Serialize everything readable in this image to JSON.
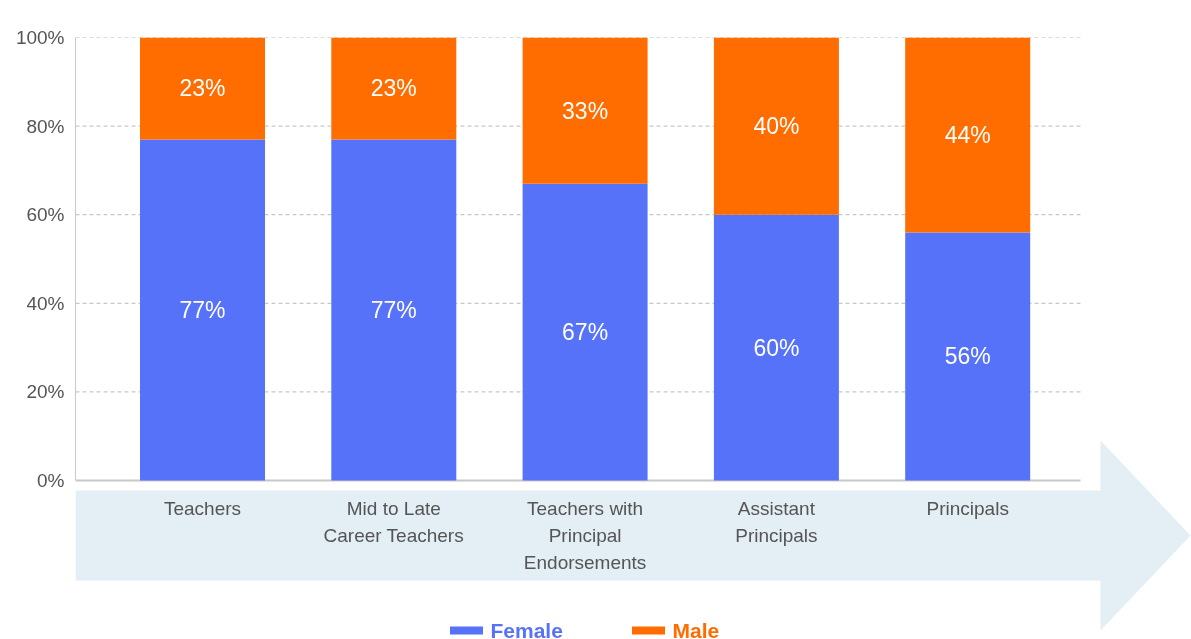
{
  "chart_data": {
    "type": "bar",
    "stacked": true,
    "categories": [
      "Teachers",
      "Mid to Late Career Teachers",
      "Teachers with Principal Endorsements",
      "Assistant Principals",
      "Principals"
    ],
    "series": [
      {
        "name": "Female",
        "color": "#5672f8",
        "values": [
          77,
          77,
          67,
          60,
          56
        ],
        "value_labels": [
          "77%",
          "77%",
          "67%",
          "60%",
          "56%"
        ]
      },
      {
        "name": "Male",
        "color": "#ff6d00",
        "values": [
          23,
          23,
          33,
          40,
          44
        ],
        "value_labels": [
          "23%",
          "23%",
          "33%",
          "40%",
          "44%"
        ]
      }
    ],
    "ylim": [
      0,
      100
    ],
    "yticks": [
      {
        "value": 0,
        "label": "0%"
      },
      {
        "value": 20,
        "label": "20%"
      },
      {
        "value": 40,
        "label": "40%"
      },
      {
        "value": 60,
        "label": "60%"
      },
      {
        "value": 80,
        "label": "80%"
      },
      {
        "value": 100,
        "label": "100%"
      }
    ],
    "grid": "y",
    "legend": "bottom"
  }
}
